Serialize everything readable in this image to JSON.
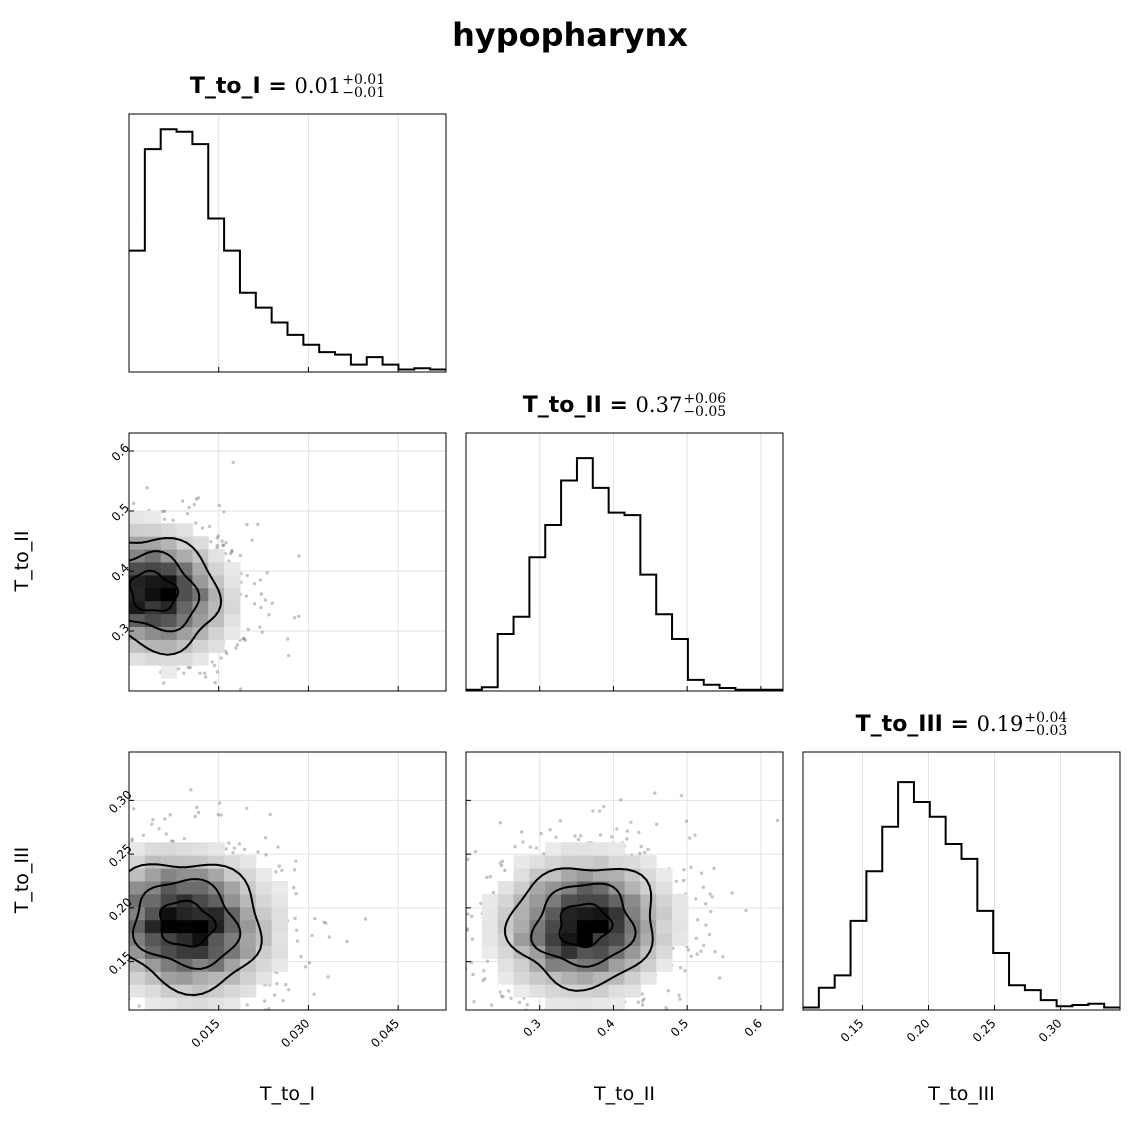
{
  "figure": {
    "title": "hypopharynx",
    "params": [
      {
        "name": "T_to_I",
        "value": "0.01",
        "plus": "+0.01",
        "minus": "−0.01",
        "ticks": [
          "0.015",
          "0.030",
          "0.045"
        ]
      },
      {
        "name": "T_to_II",
        "value": "0.37",
        "plus": "+0.06",
        "minus": "−0.05",
        "ticks": [
          "0.3",
          "0.4",
          "0.5",
          "0.6"
        ]
      },
      {
        "name": "T_to_III",
        "value": "0.19",
        "plus": "+0.04",
        "minus": "−0.03",
        "ticks": [
          "0.15",
          "0.20",
          "0.25",
          "0.30"
        ]
      }
    ],
    "equals": " = "
  },
  "chart_data": {
    "type": "corner",
    "title": "hypopharynx",
    "parameters": [
      "T_to_I",
      "T_to_II",
      "T_to_III"
    ],
    "ranges": {
      "T_to_I": [
        0.0,
        0.053
      ],
      "T_to_II": [
        0.2,
        0.63
      ],
      "T_to_III": [
        0.105,
        0.345
      ]
    },
    "grid": true,
    "histograms": {
      "T_to_I": {
        "bin_edges": [
          0.0,
          0.00265,
          0.0053,
          0.00795,
          0.0106,
          0.01325,
          0.0159,
          0.01855,
          0.0212,
          0.02385,
          0.0265,
          0.02915,
          0.0318,
          0.03445,
          0.0371,
          0.03975,
          0.0424,
          0.04505,
          0.0477,
          0.05035,
          0.053
        ],
        "relative_counts": [
          0.49,
          0.9,
          0.98,
          0.97,
          0.92,
          0.62,
          0.49,
          0.32,
          0.26,
          0.2,
          0.15,
          0.11,
          0.08,
          0.07,
          0.03,
          0.06,
          0.03,
          0.01,
          0.015,
          0.01
        ]
      },
      "T_to_II": {
        "bin_edges": [
          0.2,
          0.2215,
          0.243,
          0.2645,
          0.286,
          0.3075,
          0.329,
          0.3505,
          0.372,
          0.3935,
          0.415,
          0.4365,
          0.458,
          0.4795,
          0.501,
          0.5225,
          0.544,
          0.5655,
          0.587,
          0.6085,
          0.63
        ],
        "relative_counts": [
          0.005,
          0.015,
          0.23,
          0.3,
          0.54,
          0.67,
          0.85,
          0.94,
          0.82,
          0.72,
          0.71,
          0.47,
          0.31,
          0.21,
          0.045,
          0.025,
          0.012,
          0.005,
          0.005,
          0.005
        ]
      },
      "T_to_III": {
        "bin_edges": [
          0.105,
          0.117,
          0.129,
          0.141,
          0.153,
          0.165,
          0.177,
          0.189,
          0.201,
          0.213,
          0.225,
          0.237,
          0.249,
          0.261,
          0.273,
          0.285,
          0.297,
          0.309,
          0.321,
          0.333,
          0.345
        ],
        "relative_counts": [
          0.01,
          0.09,
          0.14,
          0.36,
          0.56,
          0.74,
          0.92,
          0.84,
          0.78,
          0.67,
          0.61,
          0.4,
          0.23,
          0.1,
          0.08,
          0.04,
          0.015,
          0.02,
          0.025,
          0.01
        ]
      }
    },
    "pairs": [
      {
        "x": "T_to_I",
        "y": "T_to_II",
        "peak": [
          0.004,
          0.365
        ],
        "sigma": [
          0.0065,
          0.055
        ],
        "rho": -0.15
      },
      {
        "x": "T_to_I",
        "y": "T_to_III",
        "peak": [
          0.0095,
          0.185
        ],
        "sigma": [
          0.0075,
          0.035
        ],
        "rho": -0.1
      },
      {
        "x": "T_to_II",
        "y": "T_to_III",
        "peak": [
          0.36,
          0.184
        ],
        "sigma": [
          0.058,
          0.033
        ],
        "rho": 0.05
      }
    ]
  }
}
